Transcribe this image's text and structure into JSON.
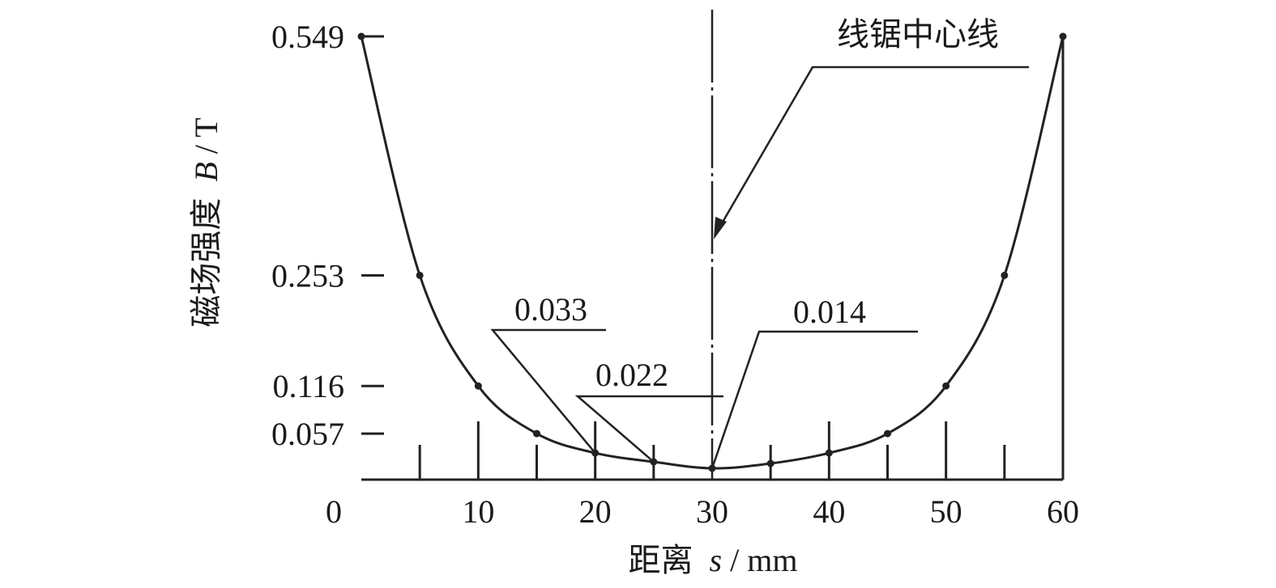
{
  "chart_data": {
    "type": "line",
    "title": "",
    "ylabel_prefix": "磁场强度",
    "ylabel_var": "B",
    "ylabel_unit": " / T",
    "xlabel_prefix": "距离",
    "xlabel_var": "s",
    "xlabel_unit": " / mm",
    "xlim": [
      0,
      60
    ],
    "ylim": [
      0,
      0.549
    ],
    "x_ticks": [
      "0",
      "10",
      "20",
      "30",
      "40",
      "50",
      "60"
    ],
    "y_ticks": [
      "0.549",
      "0.253",
      "0.116",
      "0.057"
    ],
    "y_tick_values": [
      0.549,
      0.253,
      0.116,
      0.057
    ],
    "grid": false,
    "series": [
      {
        "x": [
          0,
          5,
          10,
          15,
          20,
          25,
          30,
          35,
          40,
          45,
          50,
          55,
          60
        ],
        "y": [
          0.549,
          0.253,
          0.116,
          0.057,
          0.033,
          0.022,
          0.014,
          0.02,
          0.033,
          0.057,
          0.116,
          0.253,
          0.549
        ]
      }
    ],
    "center_line_x": 30,
    "annotations": [
      {
        "text": "0.033",
        "x": 20,
        "y": 0.033
      },
      {
        "text": "0.022",
        "x": 25,
        "y": 0.022
      },
      {
        "text": "0.014",
        "x": 30,
        "y": 0.014
      },
      {
        "text": "线锯中心线",
        "x": 30,
        "y": 0.3
      }
    ]
  }
}
